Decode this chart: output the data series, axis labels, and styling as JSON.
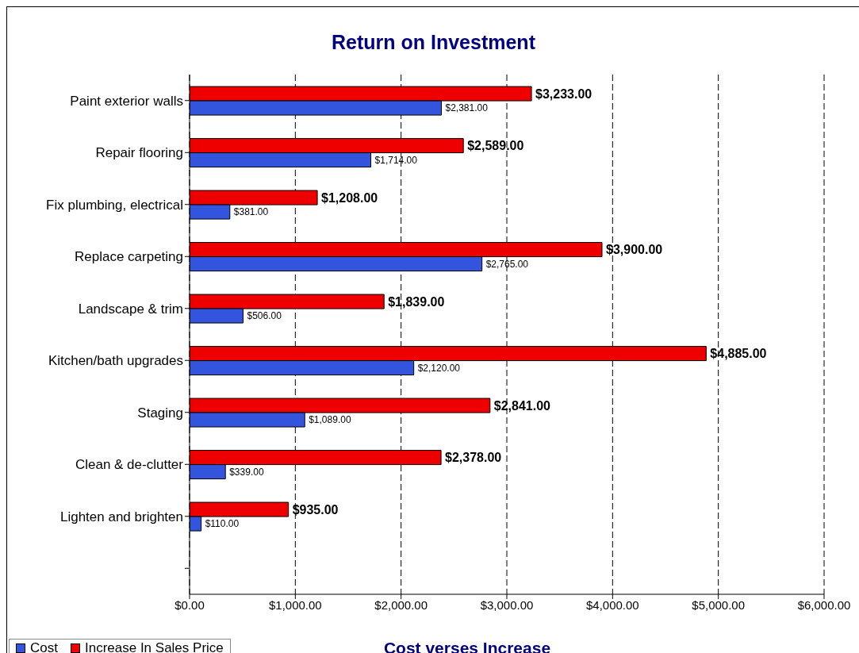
{
  "chart_data": {
    "type": "bar",
    "orientation": "horizontal",
    "title": "Return on Investment",
    "xlabel": "Cost verses Increase",
    "categories": [
      "Paint exterior walls",
      "Repair flooring",
      "Fix plumbing, electrical",
      "Replace carpeting",
      "Landscape & trim",
      "Kitchen/bath upgrades",
      "Staging",
      "Clean & de-clutter",
      "Lighten and brighten",
      null
    ],
    "series": [
      {
        "name": "Cost",
        "color": "#3355dd",
        "values": [
          2381,
          1714,
          381,
          2765,
          506,
          2120,
          1089,
          339,
          110,
          null
        ],
        "value_labels": [
          "$2,381.00",
          "$1,714.00",
          "$381.00",
          "$2,765.00",
          "$506.00",
          "$2,120.00",
          "$1,089.00",
          "$339.00",
          "$110.00",
          null
        ]
      },
      {
        "name": "Increase In Sales Price",
        "color": "#ee0000",
        "values": [
          3233,
          2589,
          1208,
          3900,
          1839,
          4885,
          2841,
          2378,
          935,
          null
        ],
        "value_labels": [
          "$3,233.00",
          "$2,589.00",
          "$1,208.00",
          "$3,900.00",
          "$1,839.00",
          "$4,885.00",
          "$2,841.00",
          "$2,378.00",
          "$935.00",
          null
        ]
      }
    ],
    "xlim": [
      0,
      6000
    ],
    "xticks": [
      {
        "value": 0,
        "label": "$0.00"
      },
      {
        "value": 1000,
        "label": "$1,000.00"
      },
      {
        "value": 2000,
        "label": "$2,000.00"
      },
      {
        "value": 3000,
        "label": "$3,000.00"
      },
      {
        "value": 4000,
        "label": "$4,000.00"
      },
      {
        "value": 5000,
        "label": "$5,000.00"
      },
      {
        "value": 6000,
        "label": "$6,000.00"
      }
    ],
    "grid": "x",
    "legend": "bottom left"
  }
}
